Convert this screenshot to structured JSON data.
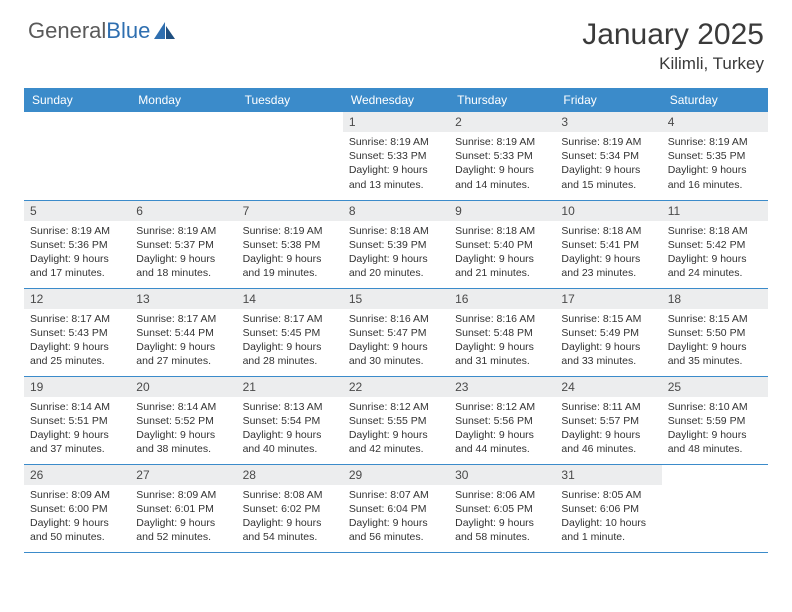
{
  "logo": {
    "text1": "General",
    "text2": "Blue"
  },
  "title": "January 2025",
  "location": "Kilimli, Turkey",
  "colors": {
    "header_bg": "#3b8bca",
    "header_text": "#ffffff",
    "daynum_bg": "#ecedee",
    "border": "#3b8bca",
    "body_text": "#333333",
    "logo_gray": "#5a5a5a",
    "logo_blue": "#2f6fb0"
  },
  "weekdays": [
    "Sunday",
    "Monday",
    "Tuesday",
    "Wednesday",
    "Thursday",
    "Friday",
    "Saturday"
  ],
  "weeks": [
    [
      null,
      null,
      null,
      {
        "n": "1",
        "sr": "8:19 AM",
        "ss": "5:33 PM",
        "dl": "9 hours and 13 minutes."
      },
      {
        "n": "2",
        "sr": "8:19 AM",
        "ss": "5:33 PM",
        "dl": "9 hours and 14 minutes."
      },
      {
        "n": "3",
        "sr": "8:19 AM",
        "ss": "5:34 PM",
        "dl": "9 hours and 15 minutes."
      },
      {
        "n": "4",
        "sr": "8:19 AM",
        "ss": "5:35 PM",
        "dl": "9 hours and 16 minutes."
      }
    ],
    [
      {
        "n": "5",
        "sr": "8:19 AM",
        "ss": "5:36 PM",
        "dl": "9 hours and 17 minutes."
      },
      {
        "n": "6",
        "sr": "8:19 AM",
        "ss": "5:37 PM",
        "dl": "9 hours and 18 minutes."
      },
      {
        "n": "7",
        "sr": "8:19 AM",
        "ss": "5:38 PM",
        "dl": "9 hours and 19 minutes."
      },
      {
        "n": "8",
        "sr": "8:18 AM",
        "ss": "5:39 PM",
        "dl": "9 hours and 20 minutes."
      },
      {
        "n": "9",
        "sr": "8:18 AM",
        "ss": "5:40 PM",
        "dl": "9 hours and 21 minutes."
      },
      {
        "n": "10",
        "sr": "8:18 AM",
        "ss": "5:41 PM",
        "dl": "9 hours and 23 minutes."
      },
      {
        "n": "11",
        "sr": "8:18 AM",
        "ss": "5:42 PM",
        "dl": "9 hours and 24 minutes."
      }
    ],
    [
      {
        "n": "12",
        "sr": "8:17 AM",
        "ss": "5:43 PM",
        "dl": "9 hours and 25 minutes."
      },
      {
        "n": "13",
        "sr": "8:17 AM",
        "ss": "5:44 PM",
        "dl": "9 hours and 27 minutes."
      },
      {
        "n": "14",
        "sr": "8:17 AM",
        "ss": "5:45 PM",
        "dl": "9 hours and 28 minutes."
      },
      {
        "n": "15",
        "sr": "8:16 AM",
        "ss": "5:47 PM",
        "dl": "9 hours and 30 minutes."
      },
      {
        "n": "16",
        "sr": "8:16 AM",
        "ss": "5:48 PM",
        "dl": "9 hours and 31 minutes."
      },
      {
        "n": "17",
        "sr": "8:15 AM",
        "ss": "5:49 PM",
        "dl": "9 hours and 33 minutes."
      },
      {
        "n": "18",
        "sr": "8:15 AM",
        "ss": "5:50 PM",
        "dl": "9 hours and 35 minutes."
      }
    ],
    [
      {
        "n": "19",
        "sr": "8:14 AM",
        "ss": "5:51 PM",
        "dl": "9 hours and 37 minutes."
      },
      {
        "n": "20",
        "sr": "8:14 AM",
        "ss": "5:52 PM",
        "dl": "9 hours and 38 minutes."
      },
      {
        "n": "21",
        "sr": "8:13 AM",
        "ss": "5:54 PM",
        "dl": "9 hours and 40 minutes."
      },
      {
        "n": "22",
        "sr": "8:12 AM",
        "ss": "5:55 PM",
        "dl": "9 hours and 42 minutes."
      },
      {
        "n": "23",
        "sr": "8:12 AM",
        "ss": "5:56 PM",
        "dl": "9 hours and 44 minutes."
      },
      {
        "n": "24",
        "sr": "8:11 AM",
        "ss": "5:57 PM",
        "dl": "9 hours and 46 minutes."
      },
      {
        "n": "25",
        "sr": "8:10 AM",
        "ss": "5:59 PM",
        "dl": "9 hours and 48 minutes."
      }
    ],
    [
      {
        "n": "26",
        "sr": "8:09 AM",
        "ss": "6:00 PM",
        "dl": "9 hours and 50 minutes."
      },
      {
        "n": "27",
        "sr": "8:09 AM",
        "ss": "6:01 PM",
        "dl": "9 hours and 52 minutes."
      },
      {
        "n": "28",
        "sr": "8:08 AM",
        "ss": "6:02 PM",
        "dl": "9 hours and 54 minutes."
      },
      {
        "n": "29",
        "sr": "8:07 AM",
        "ss": "6:04 PM",
        "dl": "9 hours and 56 minutes."
      },
      {
        "n": "30",
        "sr": "8:06 AM",
        "ss": "6:05 PM",
        "dl": "9 hours and 58 minutes."
      },
      {
        "n": "31",
        "sr": "8:05 AM",
        "ss": "6:06 PM",
        "dl": "10 hours and 1 minute."
      },
      null
    ]
  ],
  "labels": {
    "sunrise": "Sunrise: ",
    "sunset": "Sunset: ",
    "daylight": "Daylight: "
  }
}
